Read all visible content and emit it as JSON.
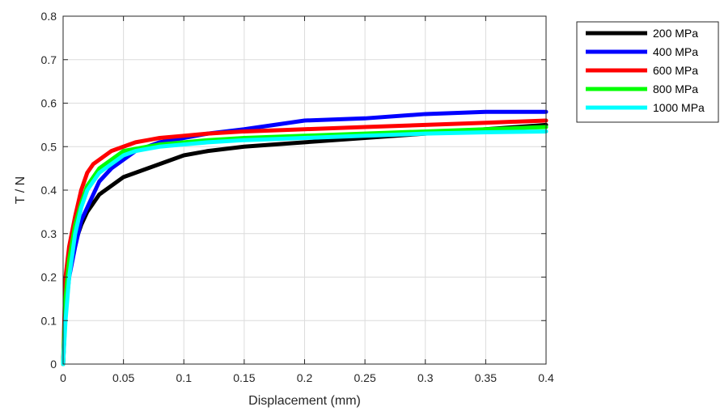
{
  "chart_data": {
    "type": "line",
    "xlabel": "Displacement (mm)",
    "ylabel": "T / N",
    "xlim": [
      0,
      0.4
    ],
    "ylim": [
      0,
      0.8
    ],
    "xticks": [
      0,
      0.05,
      0.1,
      0.15,
      0.2,
      0.25,
      0.3,
      0.35,
      0.4
    ],
    "yticks": [
      0,
      0.1,
      0.2,
      0.3,
      0.4,
      0.5,
      0.6,
      0.7,
      0.8
    ],
    "xtick_labels": [
      "0",
      "0.05",
      "0.1",
      "0.15",
      "0.2",
      "0.25",
      "0.3",
      "0.35",
      "0.4"
    ],
    "ytick_labels": [
      "0",
      "0.1",
      "0.2",
      "0.3",
      "0.4",
      "0.5",
      "0.6",
      "0.7",
      "0.8"
    ],
    "grid": true,
    "legend_position": "outside-top-right",
    "series": [
      {
        "name": "200 MPa",
        "color": "#000000",
        "x": [
          0,
          0.002,
          0.005,
          0.01,
          0.015,
          0.02,
          0.025,
          0.03,
          0.04,
          0.05,
          0.06,
          0.07,
          0.08,
          0.09,
          0.1,
          0.12,
          0.15,
          0.2,
          0.25,
          0.3,
          0.35,
          0.4
        ],
        "y": [
          0,
          0.14,
          0.22,
          0.28,
          0.32,
          0.35,
          0.37,
          0.39,
          0.41,
          0.43,
          0.44,
          0.45,
          0.46,
          0.47,
          0.48,
          0.49,
          0.5,
          0.51,
          0.52,
          0.53,
          0.54,
          0.55
        ]
      },
      {
        "name": "400 MPa",
        "color": "#0000ff",
        "x": [
          0,
          0.002,
          0.005,
          0.01,
          0.015,
          0.02,
          0.025,
          0.03,
          0.04,
          0.05,
          0.06,
          0.07,
          0.08,
          0.1,
          0.12,
          0.15,
          0.2,
          0.25,
          0.3,
          0.35,
          0.4
        ],
        "y": [
          0,
          0.12,
          0.2,
          0.27,
          0.33,
          0.36,
          0.39,
          0.42,
          0.45,
          0.47,
          0.49,
          0.5,
          0.51,
          0.52,
          0.53,
          0.54,
          0.56,
          0.565,
          0.575,
          0.58,
          0.58
        ]
      },
      {
        "name": "600 MPa",
        "color": "#ff0000",
        "x": [
          0,
          0.002,
          0.005,
          0.01,
          0.015,
          0.02,
          0.025,
          0.03,
          0.04,
          0.05,
          0.06,
          0.07,
          0.08,
          0.1,
          0.12,
          0.15,
          0.2,
          0.25,
          0.3,
          0.35,
          0.4
        ],
        "y": [
          0,
          0.2,
          0.27,
          0.34,
          0.4,
          0.44,
          0.46,
          0.47,
          0.49,
          0.5,
          0.51,
          0.515,
          0.52,
          0.525,
          0.53,
          0.535,
          0.54,
          0.545,
          0.55,
          0.555,
          0.56
        ]
      },
      {
        "name": "800 MPa",
        "color": "#00ff00",
        "x": [
          0,
          0.002,
          0.005,
          0.01,
          0.015,
          0.02,
          0.025,
          0.03,
          0.04,
          0.05,
          0.06,
          0.07,
          0.08,
          0.1,
          0.12,
          0.15,
          0.2,
          0.25,
          0.3,
          0.35,
          0.4
        ],
        "y": [
          0,
          0.15,
          0.24,
          0.32,
          0.37,
          0.41,
          0.43,
          0.45,
          0.47,
          0.49,
          0.495,
          0.5,
          0.505,
          0.51,
          0.515,
          0.52,
          0.525,
          0.53,
          0.535,
          0.54,
          0.545
        ]
      },
      {
        "name": "1000 MPa",
        "color": "#00ffff",
        "x": [
          0,
          0.002,
          0.005,
          0.01,
          0.015,
          0.02,
          0.025,
          0.03,
          0.04,
          0.05,
          0.06,
          0.07,
          0.08,
          0.1,
          0.12,
          0.15,
          0.2,
          0.25,
          0.3,
          0.35,
          0.4
        ],
        "y": [
          0,
          0.1,
          0.2,
          0.3,
          0.36,
          0.4,
          0.42,
          0.44,
          0.46,
          0.48,
          0.49,
          0.495,
          0.5,
          0.505,
          0.51,
          0.515,
          0.52,
          0.525,
          0.53,
          0.533,
          0.535
        ]
      }
    ]
  }
}
